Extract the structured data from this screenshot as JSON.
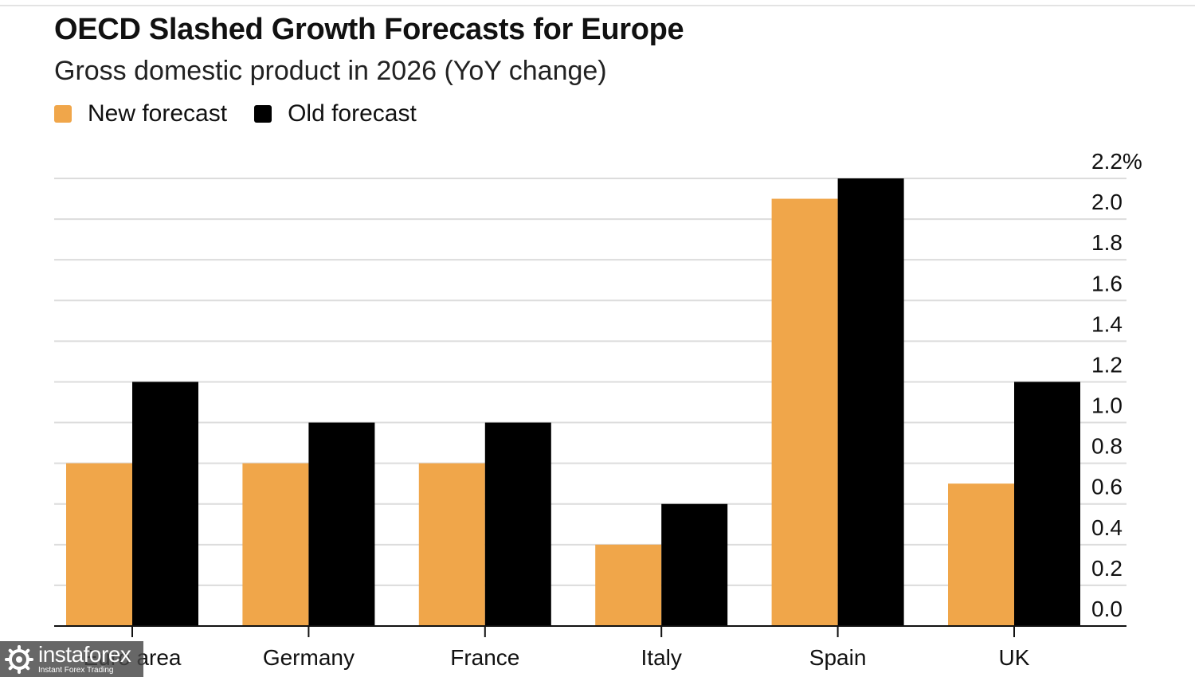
{
  "header": {
    "title": "OECD Slashed Growth Forecasts for Europe",
    "subtitle": "Gross domestic product in 2026 (YoY change)"
  },
  "legend": {
    "items": [
      {
        "label": "New forecast",
        "color": "#F0A64A"
      },
      {
        "label": "Old forecast",
        "color": "#000000"
      }
    ]
  },
  "chart_data": {
    "type": "bar",
    "title": "OECD Slashed Growth Forecasts for Europe",
    "subtitle": "Gross domestic product in 2026 (YoY change)",
    "categories": [
      "Euro area",
      "Germany",
      "France",
      "Italy",
      "Spain",
      "UK"
    ],
    "series": [
      {
        "name": "New forecast",
        "color": "#F0A64A",
        "values": [
          0.8,
          0.8,
          0.8,
          0.4,
          2.1,
          0.7
        ]
      },
      {
        "name": "Old forecast",
        "color": "#000000",
        "values": [
          1.2,
          1.0,
          1.0,
          0.6,
          2.2,
          1.2
        ]
      }
    ],
    "ylim": [
      0,
      2.2
    ],
    "yticks": [
      "0.0",
      "0.2",
      "0.4",
      "0.6",
      "0.8",
      "1.0",
      "1.2",
      "1.4",
      "1.6",
      "1.8",
      "2.0",
      "2.2%"
    ],
    "y_axis_side": "right",
    "grid": true,
    "legend_position": "top-left",
    "xlabel": "",
    "ylabel": ""
  },
  "watermark": {
    "name": "instaforex",
    "tagline": "Instant Forex Trading"
  }
}
